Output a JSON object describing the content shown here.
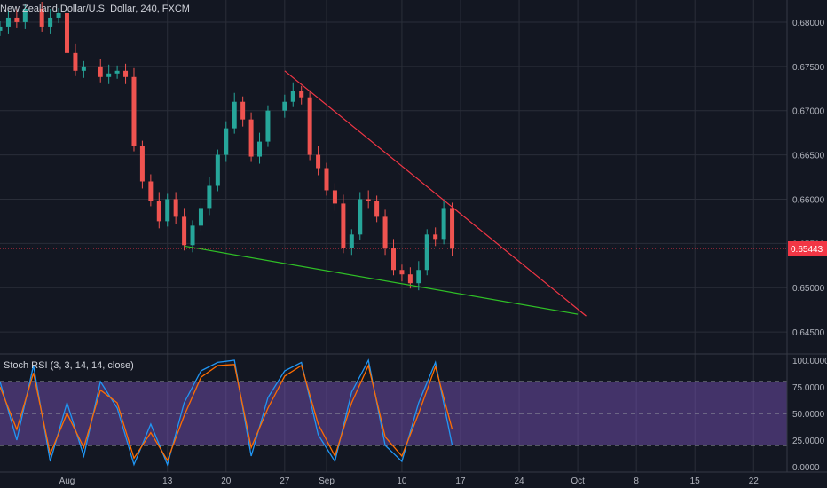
{
  "chart_data": [
    {
      "type": "candlestick",
      "title": "New Zealand Dollar/U.S. Dollar, 240, FXCM",
      "ylim": [
        0.6425,
        0.6825
      ],
      "yticks": [
        0.68,
        0.675,
        0.67,
        0.665,
        0.66,
        0.655,
        0.65,
        0.645
      ],
      "ytick_labels": [
        "0.68000",
        "0.67500",
        "0.67000",
        "0.66500",
        "0.66000",
        "0.65500",
        "0.65000",
        "0.64500"
      ],
      "xlim": [
        "2019-07-24",
        "2019-10-26"
      ],
      "xticks": [
        "2019-08-01",
        "2019-08-13",
        "2019-08-20",
        "2019-08-27",
        "2019-09-01",
        "2019-09-10",
        "2019-09-17",
        "2019-09-24",
        "2019-10-01",
        "2019-10-08",
        "2019-10-15",
        "2019-10-22"
      ],
      "xtick_labels": [
        "Aug",
        "13",
        "20",
        "27",
        "Sep",
        "10",
        "17",
        "24",
        "Oct",
        "8",
        "15",
        "22"
      ],
      "last_price": 0.65443,
      "last_price_label": "0.65443",
      "closes": [
        {
          "x": "2019-07-24",
          "y": 0.6795
        },
        {
          "x": "2019-07-25",
          "y": 0.6805
        },
        {
          "x": "2019-07-26",
          "y": 0.68
        },
        {
          "x": "2019-07-27",
          "y": 0.6815
        },
        {
          "x": "2019-07-29",
          "y": 0.6795
        },
        {
          "x": "2019-07-30",
          "y": 0.6805
        },
        {
          "x": "2019-07-31",
          "y": 0.681
        },
        {
          "x": "2019-08-01",
          "y": 0.6765
        },
        {
          "x": "2019-08-02",
          "y": 0.6745
        },
        {
          "x": "2019-08-03",
          "y": 0.675
        },
        {
          "x": "2019-08-05",
          "y": 0.6738
        },
        {
          "x": "2019-08-06",
          "y": 0.6742
        },
        {
          "x": "2019-08-07",
          "y": 0.6745
        },
        {
          "x": "2019-08-08",
          "y": 0.6738
        },
        {
          "x": "2019-08-09",
          "y": 0.666
        },
        {
          "x": "2019-08-10",
          "y": 0.662
        },
        {
          "x": "2019-08-11",
          "y": 0.6598
        },
        {
          "x": "2019-08-12",
          "y": 0.6575
        },
        {
          "x": "2019-08-13",
          "y": 0.66
        },
        {
          "x": "2019-08-14",
          "y": 0.658
        },
        {
          "x": "2019-08-15",
          "y": 0.6548
        },
        {
          "x": "2019-08-16",
          "y": 0.657
        },
        {
          "x": "2019-08-17",
          "y": 0.659
        },
        {
          "x": "2019-08-18",
          "y": 0.6615
        },
        {
          "x": "2019-08-19",
          "y": 0.665
        },
        {
          "x": "2019-08-20",
          "y": 0.668
        },
        {
          "x": "2019-08-21",
          "y": 0.671
        },
        {
          "x": "2019-08-22",
          "y": 0.669
        },
        {
          "x": "2019-08-23",
          "y": 0.6648
        },
        {
          "x": "2019-08-24",
          "y": 0.6665
        },
        {
          "x": "2019-08-25",
          "y": 0.67
        },
        {
          "x": "2019-08-27",
          "y": 0.671
        },
        {
          "x": "2019-08-28",
          "y": 0.6722
        },
        {
          "x": "2019-08-29",
          "y": 0.6715
        },
        {
          "x": "2019-08-30",
          "y": 0.665
        },
        {
          "x": "2019-08-31",
          "y": 0.6635
        },
        {
          "x": "2019-09-01",
          "y": 0.661
        },
        {
          "x": "2019-09-02",
          "y": 0.6595
        },
        {
          "x": "2019-09-03",
          "y": 0.6545
        },
        {
          "x": "2019-09-04",
          "y": 0.656
        },
        {
          "x": "2019-09-05",
          "y": 0.66
        },
        {
          "x": "2019-09-06",
          "y": 0.6598
        },
        {
          "x": "2019-09-07",
          "y": 0.658
        },
        {
          "x": "2019-09-08",
          "y": 0.6545
        },
        {
          "x": "2019-09-09",
          "y": 0.652
        },
        {
          "x": "2019-09-10",
          "y": 0.6515
        },
        {
          "x": "2019-09-11",
          "y": 0.6505
        },
        {
          "x": "2019-09-12",
          "y": 0.652
        },
        {
          "x": "2019-09-13",
          "y": 0.656
        },
        {
          "x": "2019-09-14",
          "y": 0.6555
        },
        {
          "x": "2019-09-15",
          "y": 0.659
        },
        {
          "x": "2019-09-16",
          "y": 0.6544
        }
      ],
      "trendlines": [
        {
          "color": "#f23645",
          "points": [
            {
              "x": "2019-08-27",
              "y": 0.6745
            },
            {
              "x": "2019-10-02",
              "y": 0.6468
            }
          ]
        },
        {
          "color": "#2fbf26",
          "points": [
            {
              "x": "2019-08-15",
              "y": 0.6547
            },
            {
              "x": "2019-10-01",
              "y": 0.647
            }
          ]
        }
      ],
      "colors": {
        "up": "#26a69a",
        "down": "#ef5350",
        "background": "#131722",
        "grid": "#2a2e39",
        "price_tag": "#f23645",
        "text": "#b2b5be"
      }
    },
    {
      "type": "line",
      "title": "Stoch RSI (3, 3, 14, 14, close)",
      "ylim": [
        -5,
        105
      ],
      "yticks": [
        0,
        25,
        50,
        75,
        100
      ],
      "ytick_labels": [
        "0.0000",
        "25.0000",
        "50.0000",
        "75.0000",
        "100.0000"
      ],
      "band": [
        20,
        80
      ],
      "series": [
        {
          "color": "#2196f3",
          "values": [
            {
              "x": "2019-07-24",
              "y": 80
            },
            {
              "x": "2019-07-26",
              "y": 25
            },
            {
              "x": "2019-07-28",
              "y": 95
            },
            {
              "x": "2019-07-30",
              "y": 5
            },
            {
              "x": "2019-08-01",
              "y": 60
            },
            {
              "x": "2019-08-03",
              "y": 10
            },
            {
              "x": "2019-08-05",
              "y": 80
            },
            {
              "x": "2019-08-07",
              "y": 55
            },
            {
              "x": "2019-08-09",
              "y": 2
            },
            {
              "x": "2019-08-11",
              "y": 40
            },
            {
              "x": "2019-08-13",
              "y": 2
            },
            {
              "x": "2019-08-15",
              "y": 60
            },
            {
              "x": "2019-08-17",
              "y": 90
            },
            {
              "x": "2019-08-19",
              "y": 98
            },
            {
              "x": "2019-08-21",
              "y": 100
            },
            {
              "x": "2019-08-23",
              "y": 10
            },
            {
              "x": "2019-08-25",
              "y": 65
            },
            {
              "x": "2019-08-27",
              "y": 90
            },
            {
              "x": "2019-08-29",
              "y": 98
            },
            {
              "x": "2019-08-31",
              "y": 30
            },
            {
              "x": "2019-09-02",
              "y": 5
            },
            {
              "x": "2019-09-04",
              "y": 70
            },
            {
              "x": "2019-09-06",
              "y": 100
            },
            {
              "x": "2019-09-08",
              "y": 20
            },
            {
              "x": "2019-09-10",
              "y": 5
            },
            {
              "x": "2019-09-12",
              "y": 60
            },
            {
              "x": "2019-09-14",
              "y": 98
            },
            {
              "x": "2019-09-16",
              "y": 20
            }
          ]
        },
        {
          "color": "#ff6d00",
          "values": [
            {
              "x": "2019-07-24",
              "y": 75
            },
            {
              "x": "2019-07-26",
              "y": 35
            },
            {
              "x": "2019-07-28",
              "y": 88
            },
            {
              "x": "2019-07-30",
              "y": 12
            },
            {
              "x": "2019-08-01",
              "y": 50
            },
            {
              "x": "2019-08-03",
              "y": 18
            },
            {
              "x": "2019-08-05",
              "y": 72
            },
            {
              "x": "2019-08-07",
              "y": 60
            },
            {
              "x": "2019-08-09",
              "y": 8
            },
            {
              "x": "2019-08-11",
              "y": 32
            },
            {
              "x": "2019-08-13",
              "y": 6
            },
            {
              "x": "2019-08-15",
              "y": 48
            },
            {
              "x": "2019-08-17",
              "y": 84
            },
            {
              "x": "2019-08-19",
              "y": 95
            },
            {
              "x": "2019-08-21",
              "y": 96
            },
            {
              "x": "2019-08-23",
              "y": 18
            },
            {
              "x": "2019-08-25",
              "y": 55
            },
            {
              "x": "2019-08-27",
              "y": 85
            },
            {
              "x": "2019-08-29",
              "y": 95
            },
            {
              "x": "2019-08-31",
              "y": 40
            },
            {
              "x": "2019-09-02",
              "y": 10
            },
            {
              "x": "2019-09-04",
              "y": 60
            },
            {
              "x": "2019-09-06",
              "y": 95
            },
            {
              "x": "2019-09-08",
              "y": 28
            },
            {
              "x": "2019-09-10",
              "y": 10
            },
            {
              "x": "2019-09-12",
              "y": 50
            },
            {
              "x": "2019-09-14",
              "y": 94
            },
            {
              "x": "2019-09-16",
              "y": 35
            }
          ]
        }
      ]
    }
  ]
}
